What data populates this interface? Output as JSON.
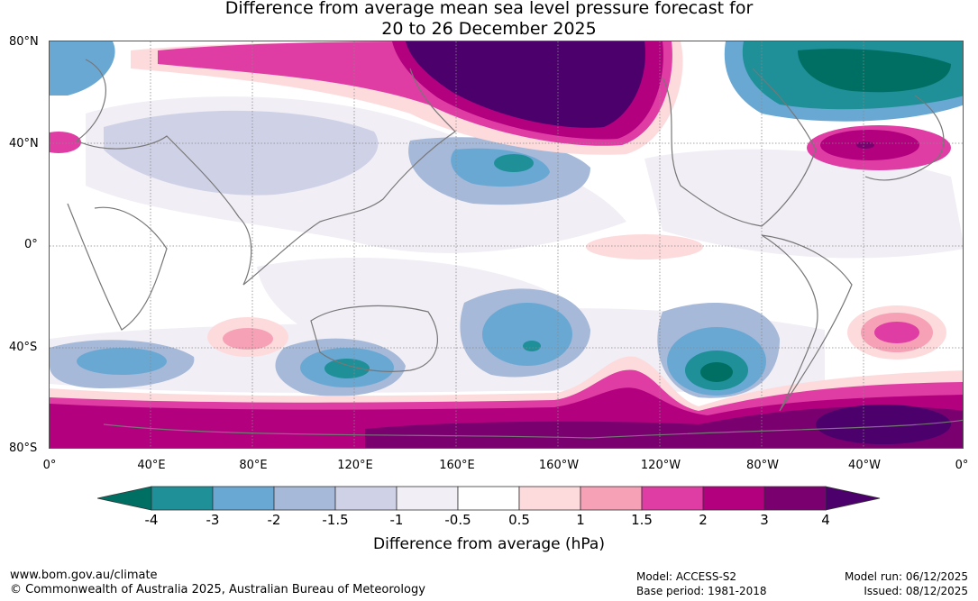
{
  "title_line1": "Difference from average mean sea level pressure forecast for",
  "title_line2": "20 to 26 December 2025",
  "lat_labels": [
    "80°N",
    "40°N",
    "0°",
    "40°S",
    "80°S"
  ],
  "lon_labels": [
    "0°",
    "40°E",
    "80°E",
    "120°E",
    "160°E",
    "160°W",
    "120°W",
    "80°W",
    "40°W",
    "0°"
  ],
  "colorbar": {
    "ticks": [
      "-4",
      "-3",
      "-2",
      "-1.5",
      "-1",
      "-0.5",
      "0.5",
      "1",
      "1.5",
      "2",
      "3",
      "4"
    ],
    "colors": [
      "#006f63",
      "#1f8f98",
      "#6aa8d4",
      "#a6b9d8",
      "#cfd2e7",
      "#f1eef5",
      "#ffffff",
      "#fddbdc",
      "#f6a1b6",
      "#df3da4",
      "#b2007f",
      "#7a0070",
      "#4b006b"
    ],
    "title": "Difference from average (hPa)"
  },
  "footer": {
    "url": "www.bom.gov.au/climate",
    "copyright": "© Commonwealth of Australia 2025, Australian Bureau of Meteorology",
    "model": "Model: ACCESS-S2",
    "base_period": "Base period: 1981-2018",
    "model_run": "Model run: 06/12/2025",
    "issued": "Issued: 08/12/2025"
  }
}
